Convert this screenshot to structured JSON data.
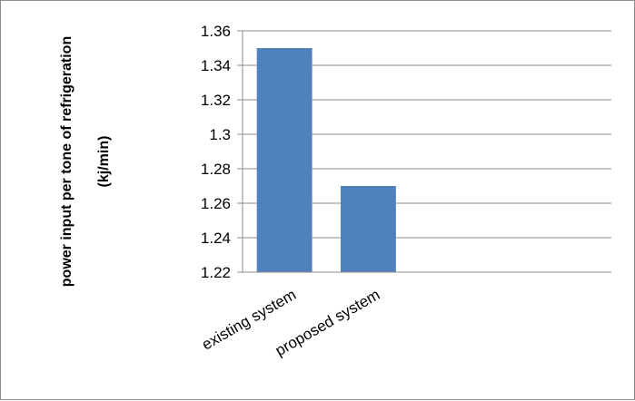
{
  "chart_data": {
    "type": "bar",
    "categories": [
      "existing system",
      "proposed system"
    ],
    "values": [
      1.35,
      1.27
    ],
    "ylabel": [
      "power input per tone of refrigeration",
      "(kj/min)"
    ],
    "xlabel": "",
    "ylim": [
      1.22,
      1.36
    ],
    "yticks": [
      "1.22",
      "1.24",
      "1.26",
      "1.28",
      "1.3",
      "1.32",
      "1.34",
      "1.36"
    ],
    "grid": true,
    "legend": "none",
    "bar_color": "#4f81bd",
    "grid_color": "#8c8c8c"
  }
}
